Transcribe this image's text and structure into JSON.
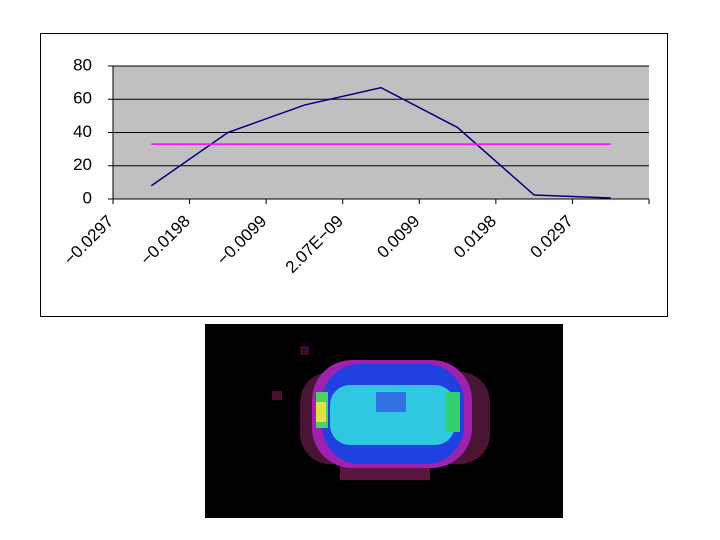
{
  "chart_data": {
    "type": "line",
    "categories": [
      "−0.0297",
      "−0.0198",
      "−0.0099",
      "2.07E−09",
      "0.0099",
      "0.0198",
      "0.0297"
    ],
    "series": [
      {
        "color": "#000080",
        "values": [
          8,
          40,
          56.5,
          67,
          43,
          2.4,
          0.6
        ]
      },
      {
        "color": "#ff00ff",
        "values": [
          33,
          33,
          33,
          33,
          33,
          33,
          33
        ]
      }
    ],
    "ylim": [
      0,
      80
    ],
    "yticks": [
      0,
      20,
      40,
      60,
      80
    ],
    "grid": true,
    "plot_background": "#c0c0c0"
  }
}
